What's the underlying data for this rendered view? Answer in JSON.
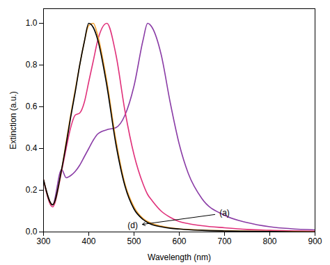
{
  "chart_data": {
    "type": "line",
    "x_label": "Wavelength (nm)",
    "y_label": "Extinction (a.u.)",
    "x": [
      300,
      320,
      340,
      350,
      360,
      370,
      380,
      390,
      400,
      410,
      420,
      440,
      460,
      480,
      500,
      520,
      530,
      540,
      560,
      580,
      600,
      620,
      650,
      700,
      750,
      800,
      900
    ],
    "series": [
      {
        "color": "#8a3ca6",
        "values": [
          0.25,
          0.13,
          0.3,
          0.26,
          0.27,
          0.29,
          0.32,
          0.36,
          0.4,
          0.44,
          0.47,
          0.49,
          0.5,
          0.56,
          0.7,
          0.92,
          1.0,
          0.98,
          0.85,
          0.62,
          0.42,
          0.28,
          0.16,
          0.08,
          0.045,
          0.025,
          0.01
        ]
      },
      {
        "color": "#e0307a",
        "values": [
          0.25,
          0.12,
          0.29,
          0.4,
          0.5,
          0.56,
          0.57,
          0.62,
          0.72,
          0.82,
          0.92,
          1.0,
          0.85,
          0.58,
          0.37,
          0.23,
          0.18,
          0.15,
          0.1,
          0.07,
          0.05,
          0.04,
          0.03,
          0.02,
          0.012,
          0.008,
          0.004
        ]
      },
      {
        "color": "#f0a030",
        "values": [
          0.25,
          0.13,
          0.3,
          0.43,
          0.56,
          0.68,
          0.8,
          0.91,
          0.99,
          1.0,
          0.94,
          0.72,
          0.44,
          0.23,
          0.12,
          0.065,
          0.05,
          0.04,
          0.028,
          0.02,
          0.015,
          0.012,
          0.009,
          0.006,
          0.004,
          0.003,
          0.001
        ]
      },
      {
        "color": "#000000",
        "values": [
          0.25,
          0.13,
          0.3,
          0.42,
          0.55,
          0.67,
          0.8,
          0.91,
          1.0,
          0.98,
          0.92,
          0.7,
          0.42,
          0.22,
          0.11,
          0.06,
          0.045,
          0.035,
          0.025,
          0.018,
          0.014,
          0.011,
          0.008,
          0.005,
          0.003,
          0.002,
          0.0
        ]
      }
    ],
    "xlim": [
      300,
      900
    ],
    "xticks": [
      300,
      400,
      500,
      600,
      700,
      800,
      900
    ],
    "ylim": [
      0,
      1.07
    ],
    "yticks": [
      {
        "value": 0,
        "label": "0.0"
      },
      0.2,
      0.4,
      0.6,
      0.8,
      {
        "value": 1,
        "label": "1.0"
      }
    ],
    "annotations": [
      {
        "text": "(a)",
        "x": 700,
        "y": 0.09
      },
      {
        "text": "(d)",
        "x": 497,
        "y": 0.03
      }
    ],
    "grid": false
  }
}
